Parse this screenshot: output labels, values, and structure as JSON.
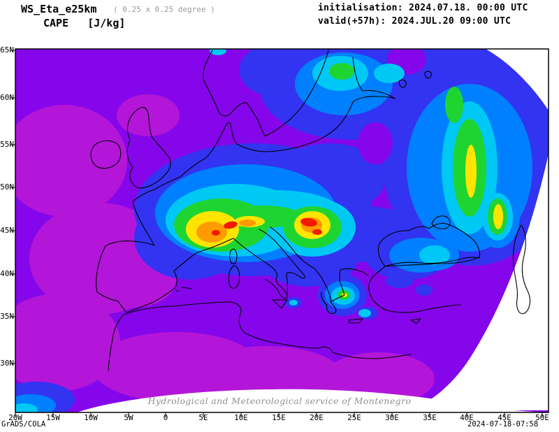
{
  "header": {
    "model": "WS_Eta_e25km",
    "grid_note": "( 0.25 x 0.25 degree )",
    "variable_line": "CAPE   [J/kg]",
    "init_line": "initialisation: 2024.07.18. 00:00 UTC",
    "valid_line": "valid(+57h): 2024.JUL.20 09:00 UTC"
  },
  "map": {
    "lat_labels": [
      "65N",
      "60N",
      "55N",
      "50N",
      "45N",
      "40N",
      "35N",
      "30N"
    ],
    "lon_labels": [
      "20W",
      "15W",
      "10W",
      "5W",
      "0",
      "5E",
      "10E",
      "15E",
      "20E",
      "25E",
      "30E",
      "35E",
      "40E",
      "45E",
      "50E"
    ],
    "watermark": "Hydrological and Meteorological service of Montenegro"
  },
  "footer": {
    "left": "GrADS/COLA",
    "right": "2024-07-18-07:58"
  },
  "chart_data": {
    "type": "heatmap",
    "title": "CAPE [J/kg]",
    "variable": "CAPE",
    "units": "J/kg",
    "model": "WS_Eta_e25km",
    "grid_resolution_deg": 0.25,
    "initialisation": "2024.07.18. 00:00 UTC",
    "valid": "2024.JUL.20 09:00 UTC",
    "forecast_hour": 57,
    "lon_ticks": [
      "20W",
      "15W",
      "10W",
      "5W",
      "0",
      "5E",
      "10E",
      "15E",
      "20E",
      "25E",
      "30E",
      "35E",
      "40E",
      "45E",
      "50E"
    ],
    "lat_ticks": [
      "65N",
      "60N",
      "55N",
      "50N",
      "45N",
      "40N",
      "35N",
      "30N"
    ],
    "lon_range_deg": [
      -20,
      50
    ],
    "lat_range_deg": [
      30,
      65
    ],
    "palette": {
      "purple": "#8506EA",
      "magenta": "#B316D9",
      "blue": "#3333F2",
      "azure": "#0080FF",
      "cyan": "#00C8F5",
      "green": "#1ED431",
      "yellow": "#FFE400",
      "orange": "#FF9A00",
      "red": "#F31A00"
    },
    "palette_order_low_to_high": [
      "purple",
      "magenta",
      "blue",
      "azure",
      "cyan",
      "green",
      "yellow",
      "orange",
      "red"
    ],
    "field_description": [
      {
        "region": "SE France / W Alps",
        "lon": 7,
        "lat": 45.5,
        "level": "red"
      },
      {
        "region": "NW Balkans / Croatia - N Serbia",
        "lon": 18.5,
        "lat": 45,
        "level": "red"
      },
      {
        "region": "S France / Massif Central",
        "lon": 3.5,
        "lat": 45,
        "level": "orange"
      },
      {
        "region": "Alpine chain bridge",
        "lon": 11,
        "lat": 46,
        "level": "orange"
      },
      {
        "region": "Baltic / S Finland spot",
        "lon": 23,
        "lat": 62.5,
        "level": "green"
      },
      {
        "region": "W Russia north-south band",
        "lon": 40,
        "lat": 52,
        "level": "yellow"
      },
      {
        "region": "Lower Volga / Caucasus foreland",
        "lon": 44,
        "lat": 46.5,
        "level": "yellow"
      },
      {
        "region": "C Greece / Aegean spot",
        "lon": 23.5,
        "lat": 38.5,
        "level": "yellow"
      },
      {
        "region": "background",
        "level": "purple",
        "note": "low CAPE over Atlantic, Iberia, N Africa, E Mediterranean"
      },
      {
        "region": "no-data areas",
        "level": "white",
        "note": "curved model-domain edge: NE corner, E edge and bottom edge"
      }
    ]
  }
}
